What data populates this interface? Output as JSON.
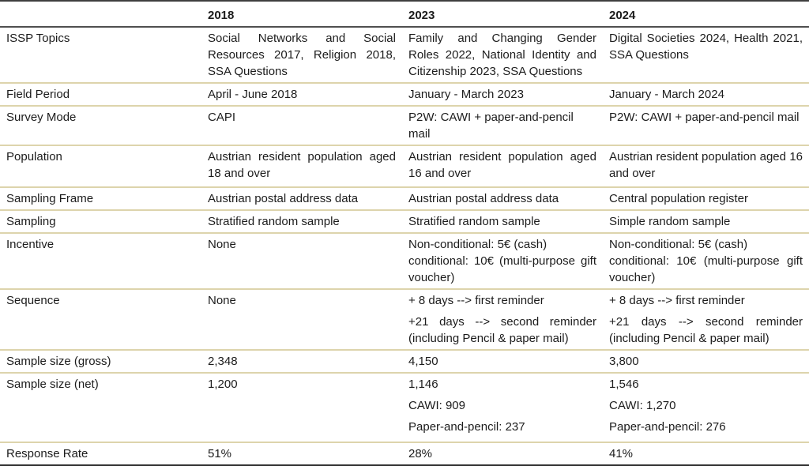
{
  "colors": {
    "row_divider": "#ddd4ac",
    "strong_rule": "#3e3e3e",
    "text": "#1c1c1c"
  },
  "header": {
    "col2018": "2018",
    "col2023": "2023",
    "col2024": "2024"
  },
  "rows": {
    "issp_topics": {
      "label": "ISSP Topics",
      "y2018": "Social Networks and Social Resources 2017, Religion 2018, SSA Questions",
      "y2023": "Family and Changing Gender Roles 2022, National Identity and Citizenship 2023, SSA Questions",
      "y2024": "Digital Societies 2024, Health 2021, SSA Questions"
    },
    "field_period": {
      "label": "Field Period",
      "y2018": "April - June 2018",
      "y2023": "January - March 2023",
      "y2024": "January - March 2024"
    },
    "survey_mode": {
      "label": "Survey Mode",
      "y2018": "CAPI",
      "y2023": "P2W: CAWI + paper-and-pencil mail",
      "y2024": "P2W: CAWI + paper-and-pencil mail"
    },
    "population": {
      "label": "Population",
      "y2018": "Austrian resident population aged 18 and over",
      "y2023": "Austrian resident population aged 16 and over",
      "y2024": "Austrian resident population aged 16 and over"
    },
    "sampling_frame": {
      "label": "Sampling Frame",
      "y2018": "Austrian postal address data",
      "y2023": "Austrian postal address data",
      "y2024": "Central population register"
    },
    "sampling": {
      "label": "Sampling",
      "y2018": "Stratified random sample",
      "y2023": "Stratified random sample",
      "y2024": "Simple random sample"
    },
    "incentive": {
      "label": "Incentive",
      "y2018": "None",
      "y2023": [
        "Non-conditional: 5€ (cash)",
        "conditional: 10€ (multi-purpose gift voucher)"
      ],
      "y2024": [
        "Non-conditional: 5€ (cash)",
        "conditional: 10€ (multi-purpose gift voucher)"
      ]
    },
    "sequence": {
      "label": "Sequence",
      "y2018": "None",
      "y2023": [
        "+ 8 days --> first reminder",
        "+21 days --> second reminder (including Pencil & paper mail)"
      ],
      "y2024": [
        "+ 8 days --> first reminder",
        "+21 days --> second reminder (including Pencil & paper mail)"
      ]
    },
    "sample_gross": {
      "label": "Sample size (gross)",
      "y2018": "2,348",
      "y2023": "4,150",
      "y2024": "3,800"
    },
    "sample_net": {
      "label": "Sample size (net)",
      "y2018": "1,200",
      "y2023": [
        "1,146",
        "CAWI: 909",
        "Paper-and-pencil: 237"
      ],
      "y2024": [
        "1,546",
        "CAWI: 1,270",
        "Paper-and-pencil: 276"
      ]
    },
    "response_rate": {
      "label": "Response Rate",
      "y2018": "51%",
      "y2023": "28%",
      "y2024": "41%"
    }
  }
}
